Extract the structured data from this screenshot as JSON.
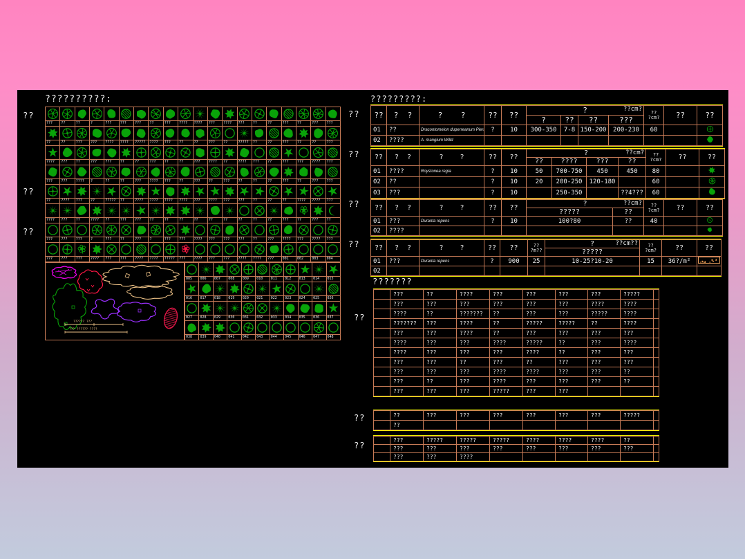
{
  "colors": {
    "salmon": "#c67a56",
    "yellow": "#f2f200",
    "green": "#09a309",
    "white": "#f0f0f0",
    "tan": "#eec287",
    "magenta": "#e800e8",
    "red": "#ff1744",
    "purple": "#9b30ff",
    "crimson": "#e8184a",
    "hatch_border": "#e8a060",
    "hatch_dot": "#e89a50",
    "canvas_bg": "#000000"
  },
  "legend": {
    "title": "??????????:",
    "left_labels": [
      "??",
      "??",
      "??"
    ],
    "rows": [
      {
        "style": "ccdcdhdcdcpdbcqdhccd",
        "labels": [
          "???",
          "??",
          "??",
          "?",
          "???",
          "???",
          "???",
          "??",
          "???",
          "????",
          "????",
          "???",
          "????",
          "???",
          "??",
          "??",
          "???",
          "??",
          "???",
          "???"
        ]
      },
      {
        "style": "bqcdcddcdddcopdhdbdc",
        "labels": [
          "??",
          "??",
          "???",
          "???",
          "????",
          "????",
          "?????",
          "????",
          "???",
          "??",
          "??",
          "???",
          "??",
          "?????",
          "??",
          "??",
          "???",
          "??",
          "??",
          "???"
        ]
      },
      {
        "style": "sdcddbqcqqdqbdohsoch",
        "labels": [
          "????",
          "???",
          "??",
          "???",
          "???",
          "??",
          "??",
          "???",
          "??",
          "??",
          "???",
          "????",
          "??",
          "????",
          "???",
          "??",
          "???",
          "???",
          "????",
          "???"
        ]
      },
      {
        "style": "dqdhcdcdcdqhcdcdbddh",
        "labels": [
          "???",
          "???",
          "????",
          "?",
          "??",
          "??",
          "???",
          "????",
          "???",
          "??",
          "???",
          "??",
          "???",
          "??",
          "??",
          "??",
          "???",
          "??",
          "???",
          "???"
        ]
      },
      {
        "style": "qsbpsqbsdbssbssqssqs",
        "labels": [
          "??",
          "????",
          "???",
          "??",
          "?????",
          "??",
          "????",
          "????",
          "????",
          "????",
          "???",
          "????",
          "???",
          "???",
          "??",
          "??",
          "??",
          "????",
          "????",
          "???"
        ]
      },
      {
        "style": "ppdbppspbbpdpoqpdfbm",
        "labels": [
          "????",
          "???",
          "??",
          "????",
          "??",
          "???",
          "???",
          "??",
          "??",
          "??",
          "??",
          "??",
          "??",
          "??",
          "??",
          "??",
          "???",
          "??",
          "???",
          "??"
        ]
      },
      {
        "style": "oqoccqdcqboqdqoqdqoq",
        "labels": [
          "???",
          "???",
          "???",
          "?",
          "???",
          "??",
          "???",
          "?",
          "???",
          "???",
          "????",
          "???",
          "???",
          "???",
          "??",
          "???",
          "????",
          "???",
          "????",
          "???"
        ]
      },
      {
        "style": "oqfbqohoqfooooqdqooo",
        "labels": [
          "???",
          "???",
          "???",
          "????",
          "???",
          "???",
          "????",
          "????",
          "?????",
          "???",
          "????",
          "???",
          "???",
          "????",
          "????",
          "???",
          "001",
          "002",
          "003",
          "004"
        ]
      }
    ],
    "specials": [
      {
        "row": 7,
        "col": 9,
        "type": "f",
        "color": "#ff1744"
      }
    ],
    "sub": {
      "styles": [
        "opbqqhcqsps",
        "sdpbqpsqoph",
        "obppcqpddds",
        "dbboqooooco"
      ],
      "labels": [
        "005",
        "006",
        "007",
        "008",
        "009",
        "010",
        "011",
        "012",
        "013",
        "014",
        "015",
        "016",
        "017",
        "018",
        "019",
        "020",
        "021",
        "022",
        "023",
        "024",
        "025",
        "026",
        "027",
        "028",
        "029",
        "030",
        "031",
        "032",
        "033",
        "034",
        "035",
        "036",
        "037",
        "038",
        "039",
        "040",
        "041",
        "042",
        "043",
        "044",
        "045",
        "046",
        "047",
        "048"
      ]
    },
    "scale_text_1": "?????? ???",
    "scale_text_2": "??? ?????? ????"
  },
  "spec_title": "?????????:",
  "spec_side_labels": [
    "??",
    "??",
    "??",
    "??"
  ],
  "spec_tables": [
    {
      "cols": [
        23,
        47,
        94,
        25,
        36,
        50,
        25,
        44,
        51,
        29,
        48,
        37
      ],
      "lead": [
        "??",
        "?  ?",
        "?    ?",
        "??",
        "??"
      ],
      "group": {
        "title": "?",
        "unit": "??cm?",
        "subs": [
          "?",
          "??",
          "??",
          "???"
        ]
      },
      "tail": [
        {
          "two": [
            "??",
            "?cm?"
          ]
        },
        "??",
        "??"
      ],
      "rows": [
        [
          "01",
          "??",
          "Dracontomelon duperreanum Pierre",
          "?",
          "10",
          "300-350",
          "7-8",
          "150-200",
          "200-230",
          "60",
          "",
          "@ring-cross"
        ],
        [
          "02",
          "????",
          "A. mangium Willd",
          "",
          "",
          "",
          "",
          "",
          "",
          "",
          "",
          "@blob"
        ]
      ]
    },
    {
      "cols": [
        23,
        47,
        94,
        25,
        36,
        37,
        50,
        46,
        40,
        29,
        48,
        37
      ],
      "lead": [
        "??",
        "?  ?",
        "?    ?",
        "??",
        "??"
      ],
      "group": {
        "title": "?",
        "unit": "??cm?",
        "subs": [
          "??",
          "????",
          "???",
          "??"
        ]
      },
      "tail": [
        {
          "two": [
            "??",
            "?cm?"
          ]
        },
        "??",
        "??"
      ],
      "rows": [
        [
          "01",
          "????",
          "Roystonea regia",
          "?",
          "10",
          "50",
          "700-750",
          "450",
          "450",
          "80",
          "",
          "@maple"
        ],
        [
          "02",
          "??",
          "",
          "?",
          "10",
          "20",
          "200-250",
          "120-180",
          "",
          "60",
          "",
          "@swirl"
        ],
        [
          "03",
          "???",
          "",
          "?",
          "10",
          "",
          "250-350",
          "",
          "??4???",
          "60",
          "",
          "@dense"
        ]
      ]
    },
    {
      "cols": [
        23,
        47,
        94,
        25,
        36,
        125,
        45,
        29,
        48,
        37
      ],
      "lead": [
        "??",
        "?  ?",
        "?    ?",
        "??",
        "??"
      ],
      "group": {
        "title": "?",
        "unit": "??cm?",
        "subs": [
          "?????",
          "??"
        ]
      },
      "tail": [
        {
          "two": [
            "??",
            "?cm?"
          ]
        },
        "??",
        "??"
      ],
      "rows": [
        [
          "01",
          "???",
          "Duranta repens",
          "?",
          "10",
          "100?80",
          "??",
          "40",
          "",
          "@ring-dot"
        ],
        [
          "02",
          "????",
          "",
          "",
          "",
          "",
          "",
          "",
          "",
          "@dense-small"
        ]
      ]
    },
    {
      "cols": [
        23,
        47,
        94,
        23,
        40,
        25,
        137,
        32,
        51,
        35
      ],
      "lead": [
        "??",
        "?  ?",
        "?    ?",
        "??",
        "??",
        {
          "two": [
            "??",
            "?m??"
          ]
        }
      ],
      "group": {
        "title": "?",
        "unit": "??cm??",
        "subs": [
          "?????"
        ]
      },
      "tail": [
        {
          "two": [
            "??",
            "?cm?"
          ]
        },
        "??",
        "??"
      ],
      "rows": [
        [
          "01",
          "???",
          "Duranta repens",
          "?",
          "900",
          "25",
          "10-25?10-20",
          "15",
          "36?/m²",
          "@hatch"
        ],
        [
          "02",
          "",
          "",
          "",
          "",
          "",
          "",
          "",
          "",
          ""
        ]
      ]
    }
  ],
  "notes": {
    "title": "???????",
    "side_labels": [
      "??",
      "??",
      "??"
    ],
    "sections": [
      {
        "rows": [
          [
            "???",
            "??",
            "????",
            "???",
            "???",
            "???",
            "???",
            "?????"
          ],
          [
            "???",
            "???",
            "???",
            "???",
            "???",
            "???",
            "????",
            "????"
          ],
          [
            "????",
            "??",
            "???????",
            "??",
            "???",
            "???",
            "?????",
            "????"
          ],
          [
            "???????",
            "???",
            "????",
            "??",
            "?????",
            "?????",
            "??",
            "????"
          ],
          [
            "???",
            "???",
            "????",
            "??",
            "???",
            "???",
            "???",
            "???"
          ],
          [
            "????",
            "???",
            "???",
            "????",
            "?????",
            "??",
            "???",
            "????"
          ],
          [
            "????",
            "???",
            "???",
            "???",
            "????",
            "??",
            "???",
            "???"
          ],
          [
            "???",
            "???",
            "??",
            "???",
            "??",
            "???",
            "???",
            "???"
          ],
          [
            "???",
            "???",
            "???",
            "????",
            "????",
            "???",
            "???",
            "??"
          ],
          [
            "???",
            "??",
            "???",
            "????",
            "???",
            "???",
            "???",
            "??"
          ],
          [
            "???",
            "???",
            "???",
            "?????",
            "???",
            "???",
            "",
            ""
          ]
        ]
      },
      {
        "rows": [
          [
            "??",
            "???",
            "???",
            "???",
            "???",
            "???",
            "???",
            "?????"
          ],
          [
            "??",
            "",
            "",
            "",
            "",
            "",
            "",
            ""
          ]
        ]
      },
      {
        "rows": [
          [
            "???",
            "?????",
            "?????",
            "?????",
            "????",
            "????",
            "????",
            "??"
          ],
          [
            "???",
            "???",
            "???",
            "???",
            "???",
            "???",
            "???",
            "???"
          ],
          [
            "???",
            "???",
            "????",
            "",
            "",
            "",
            "",
            ""
          ]
        ]
      }
    ]
  }
}
